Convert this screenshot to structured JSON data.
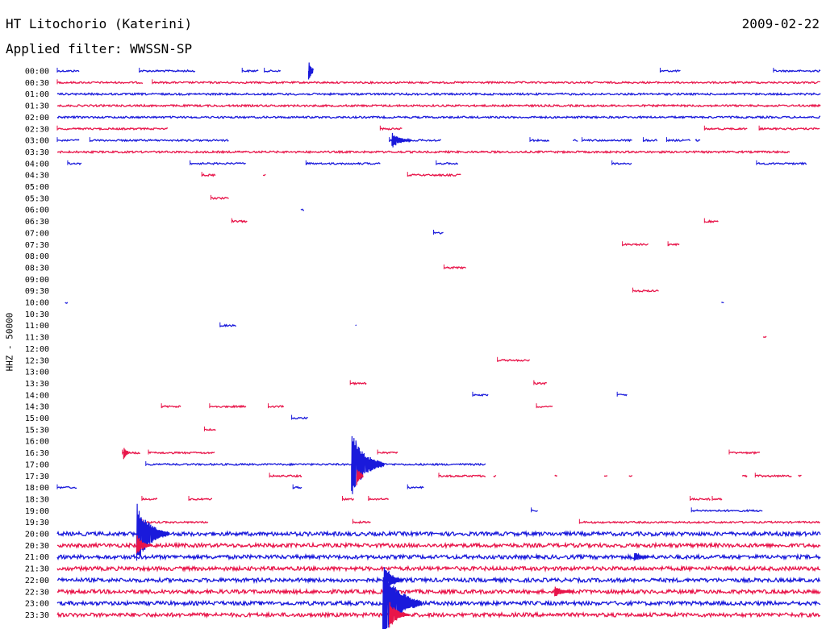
{
  "header": {
    "station": "HT Litochorio (Katerini)",
    "date": "2009-02-22",
    "filter": "Applied filter: WWSSN-SP"
  },
  "chart_data": {
    "type": "line",
    "title": "HT Litochorio (Katerini)",
    "subtitle": "Applied filter: WWSSN-SP",
    "ylabel": "HHZ - 50000",
    "xlabel": "",
    "grid": false,
    "x_range_minutes": [
      0,
      30
    ],
    "row_labels": [
      "00:00",
      "00:30",
      "01:00",
      "01:30",
      "02:00",
      "02:30",
      "03:00",
      "03:30",
      "04:00",
      "04:30",
      "05:00",
      "05:30",
      "06:00",
      "06:30",
      "07:00",
      "07:30",
      "08:00",
      "08:30",
      "09:00",
      "09:30",
      "10:00",
      "10:30",
      "11:00",
      "11:30",
      "12:00",
      "12:30",
      "13:00",
      "13:30",
      "14:00",
      "14:30",
      "15:00",
      "15:30",
      "16:00",
      "16:30",
      "17:00",
      "17:30",
      "18:00",
      "18:30",
      "19:00",
      "19:30",
      "20:00",
      "20:30",
      "21:00",
      "21:30",
      "22:00",
      "22:30",
      "23:00",
      "23:30"
    ],
    "colors": {
      "even": "#1a1adb",
      "odd": "#e8154a"
    },
    "segments": [
      {
        "row": "00:00",
        "spans": [
          [
            0,
            1.7
          ],
          [
            6.3,
            10.6
          ],
          [
            14.2,
            15.5
          ],
          [
            15.9,
            17.2
          ],
          [
            46.3,
            47.9
          ],
          [
            55,
            58.6
          ]
        ]
      },
      {
        "row": "00:30",
        "spans": [
          [
            0,
            6.6
          ],
          [
            7.3,
            58.6
          ]
        ]
      },
      {
        "row": "01:00",
        "spans": [
          [
            0,
            58.6
          ]
        ]
      },
      {
        "row": "01:30",
        "spans": [
          [
            0,
            58.6
          ]
        ]
      },
      {
        "row": "02:00",
        "spans": [
          [
            0,
            58.6
          ]
        ]
      },
      {
        "row": "02:30",
        "spans": [
          [
            0,
            8.5
          ],
          [
            24.8,
            26.5
          ],
          [
            49.7,
            53.0
          ],
          [
            53.9,
            58.6
          ]
        ]
      },
      {
        "row": "03:00",
        "spans": [
          [
            0,
            1.7
          ],
          [
            2.5,
            13.2
          ],
          [
            25.5,
            29.5
          ],
          [
            36.3,
            37.8
          ],
          [
            39.6,
            40.0
          ],
          [
            40.3,
            44.2
          ],
          [
            45.0,
            46.1
          ],
          [
            46.8,
            48.6
          ],
          [
            49.0,
            49.4
          ]
        ]
      },
      {
        "row": "03:30",
        "spans": [
          [
            0,
            56.3
          ]
        ]
      },
      {
        "row": "04:00",
        "spans": [
          [
            0.8,
            1.9
          ],
          [
            10.2,
            14.5
          ],
          [
            19.1,
            24.8
          ],
          [
            29.1,
            30.8
          ],
          [
            42.6,
            44.1
          ],
          [
            53.7,
            57.6
          ]
        ]
      },
      {
        "row": "04:30",
        "spans": [
          [
            11.1,
            12.2
          ],
          [
            15.8,
            16.0
          ],
          [
            26.9,
            31.0
          ]
        ]
      },
      {
        "row": "05:30",
        "spans": [
          [
            11.8,
            13.2
          ]
        ]
      },
      {
        "row": "06:00",
        "spans": [
          [
            18.7,
            19.0
          ]
        ]
      },
      {
        "row": "06:30",
        "spans": [
          [
            13.4,
            14.6
          ],
          [
            49.7,
            50.8
          ]
        ]
      },
      {
        "row": "07:00",
        "spans": [
          [
            28.9,
            29.7
          ]
        ]
      },
      {
        "row": "07:30",
        "spans": [
          [
            43.4,
            45.4
          ],
          [
            46.9,
            47.8
          ]
        ]
      },
      {
        "row": "08:30",
        "spans": [
          [
            29.7,
            31.4
          ]
        ]
      },
      {
        "row": "09:30",
        "spans": [
          [
            44.2,
            46.2
          ]
        ]
      },
      {
        "row": "10:00",
        "spans": [
          [
            0.6,
            0.8
          ],
          [
            51.0,
            51.2
          ]
        ]
      },
      {
        "row": "11:00",
        "spans": [
          [
            12.5,
            13.8
          ],
          [
            22.9,
            23.0
          ]
        ]
      },
      {
        "row": "11:30",
        "spans": [
          [
            54.2,
            54.5
          ]
        ]
      },
      {
        "row": "12:30",
        "spans": [
          [
            33.8,
            36.3
          ]
        ]
      },
      {
        "row": "13:30",
        "spans": [
          [
            22.5,
            23.8
          ],
          [
            36.6,
            37.6
          ]
        ]
      },
      {
        "row": "14:00",
        "spans": [
          [
            31.9,
            33.1
          ],
          [
            43.0,
            43.8
          ]
        ]
      },
      {
        "row": "14:30",
        "spans": [
          [
            8.0,
            9.5
          ],
          [
            11.7,
            14.5
          ],
          [
            16.2,
            17.4
          ],
          [
            36.8,
            38.1
          ]
        ]
      },
      {
        "row": "15:00",
        "spans": [
          [
            18.0,
            19.3
          ]
        ]
      },
      {
        "row": "15:30",
        "spans": [
          [
            11.3,
            12.2
          ]
        ]
      },
      {
        "row": "16:30",
        "spans": [
          [
            5.0,
            6.4
          ],
          [
            7.0,
            12.1
          ],
          [
            24.6,
            26.2
          ],
          [
            51.6,
            54.0
          ]
        ]
      },
      {
        "row": "17:00",
        "spans": [
          [
            6.8,
            32.9
          ]
        ]
      },
      {
        "row": "17:30",
        "spans": [
          [
            16.3,
            18.8
          ],
          [
            29.3,
            32.9
          ],
          [
            33.5,
            33.7
          ],
          [
            38.2,
            38.4
          ],
          [
            42.0,
            42.3
          ],
          [
            43.9,
            44.2
          ],
          [
            52.6,
            53.0
          ],
          [
            53.6,
            56.4
          ],
          [
            56.9,
            57.2
          ]
        ]
      },
      {
        "row": "18:00",
        "spans": [
          [
            0,
            1.5
          ],
          [
            18.1,
            18.8
          ],
          [
            26.9,
            28.2
          ]
        ]
      },
      {
        "row": "18:30",
        "spans": [
          [
            6.5,
            7.7
          ],
          [
            10.1,
            11.9
          ],
          [
            21.9,
            22.8
          ],
          [
            23.9,
            25.5
          ],
          [
            48.6,
            50.2
          ],
          [
            50.3,
            51.1
          ]
        ]
      },
      {
        "row": "19:00",
        "spans": [
          [
            36.4,
            36.9
          ],
          [
            48.7,
            54.2
          ]
        ]
      },
      {
        "row": "19:30",
        "spans": [
          [
            6.5,
            11.6
          ],
          [
            22.7,
            24.1
          ],
          [
            40.1,
            58.6
          ]
        ]
      },
      {
        "row": "20:00",
        "spans": [
          [
            0,
            58.6
          ]
        ]
      },
      {
        "row": "20:30",
        "spans": [
          [
            0,
            58.6
          ]
        ]
      },
      {
        "row": "21:00",
        "spans": [
          [
            0,
            58.6
          ]
        ]
      },
      {
        "row": "21:30",
        "spans": [
          [
            0,
            58.6
          ]
        ]
      },
      {
        "row": "22:00",
        "spans": [
          [
            0,
            58.6
          ]
        ]
      },
      {
        "row": "22:30",
        "spans": [
          [
            0,
            58.6
          ]
        ]
      },
      {
        "row": "23:00",
        "spans": [
          [
            0,
            58.6
          ]
        ]
      },
      {
        "row": "23:30",
        "spans": [
          [
            0,
            58.6
          ]
        ]
      }
    ],
    "events": [
      {
        "row": "00:00",
        "minute": 19.3,
        "amplitude": 1.6,
        "duration": 0.4
      },
      {
        "row": "03:00",
        "minute": 25.7,
        "amplitude": 1.2,
        "duration": 1.5
      },
      {
        "row": "16:30",
        "minute": 5.1,
        "amplitude": 1.1,
        "duration": 0.4
      },
      {
        "row": "17:00",
        "minute": 22.6,
        "amplitude": 5,
        "duration": 2.5
      },
      {
        "row": "17:30",
        "minute": 23.0,
        "amplitude": 1.6,
        "duration": 0.5
      },
      {
        "row": "20:00",
        "minute": 6.1,
        "amplitude": 4.5,
        "duration": 2.5
      },
      {
        "row": "20:30",
        "minute": 6.1,
        "amplitude": 1.6,
        "duration": 1.2
      },
      {
        "row": "22:00",
        "minute": 25.1,
        "amplitude": 2.3,
        "duration": 1.5
      },
      {
        "row": "23:00",
        "minute": 25.0,
        "amplitude": 6,
        "duration": 3
      },
      {
        "row": "23:30",
        "minute": 25.5,
        "amplitude": 2.1,
        "duration": 1.5
      },
      {
        "row": "22:30",
        "minute": 38.2,
        "amplitude": 0.9,
        "duration": 1.5
      },
      {
        "row": "21:00",
        "minute": 44.3,
        "amplitude": 0.8,
        "duration": 1.2
      }
    ]
  }
}
